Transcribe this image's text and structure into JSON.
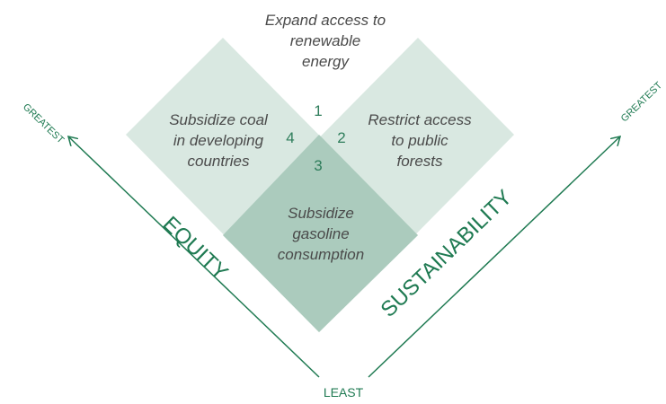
{
  "top": {
    "lines": [
      "Expand access to",
      "renewable",
      "energy"
    ],
    "number": "1"
  },
  "right": {
    "lines": [
      "Restrict access",
      "to public",
      "forests"
    ],
    "number": "2"
  },
  "bottom": {
    "lines": [
      "Subsidize",
      "gasoline",
      "consumption"
    ],
    "number": "3"
  },
  "left": {
    "lines": [
      "Subsidize coal",
      "in developing",
      "countries"
    ],
    "number": "4"
  },
  "axes": {
    "left_label": "EQUITY",
    "right_label": "SUSTAINABILITY",
    "left_end": "GREATEST",
    "right_end": "GREATEST",
    "origin": "LEAST"
  }
}
